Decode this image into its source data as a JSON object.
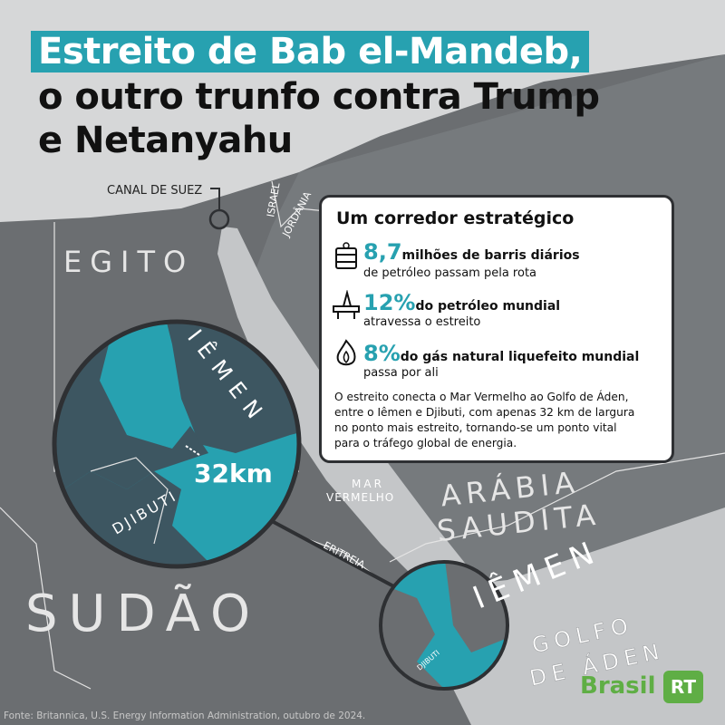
{
  "title": {
    "lines": [
      "Estreito de Bab el-Mandeb,",
      "o outro trunfo contra Trump",
      "e Netanyahu"
    ]
  },
  "map_labels": {
    "suez": "CANAL DE SUEZ",
    "israel": "ISRAEL",
    "jordan": "JORDÂNIA",
    "egypt": "EGITO",
    "red_sea": [
      "MAR",
      "VERMELHO"
    ],
    "saudi": [
      "ARÁBIA",
      "SAUDITA"
    ],
    "eritrea": "ERITREIA",
    "sudan": "SUDÃO",
    "yemen": "IÊMEN",
    "gulf": [
      "GOLFO",
      "DE ÁDEN"
    ],
    "djibouti": "DJIBUTI"
  },
  "zoom": {
    "yemen": "IÊMEN",
    "djibouti": "DJIBUTI",
    "width": "32km"
  },
  "info_box": {
    "heading": "Um corredor estratégico",
    "stats": [
      {
        "figure": "8,7",
        "text": "milhões de barris diários",
        "subtext": "de petróleo passam pela rota"
      },
      {
        "figure": "12%",
        "text": "do petróleo mundial",
        "subtext": "atravessa o estreito"
      },
      {
        "figure": "8%",
        "text": "do gás natural liquefeito mundial",
        "subtext": "passa por ali"
      }
    ],
    "description": [
      "O estreito conecta o Mar Vermelho ao Golfo de Áden,",
      "entre o Iêmen e Djibuti, com apenas 32 km de largura",
      "no ponto mais estreito, tornando-se um ponto vital",
      "para o tráfego global de energia."
    ]
  },
  "source": "Fonte: Britannica, U.S. Energy Information Administration, outubro de 2024.",
  "logo": {
    "brand": "Brasil",
    "badge": "RT"
  }
}
